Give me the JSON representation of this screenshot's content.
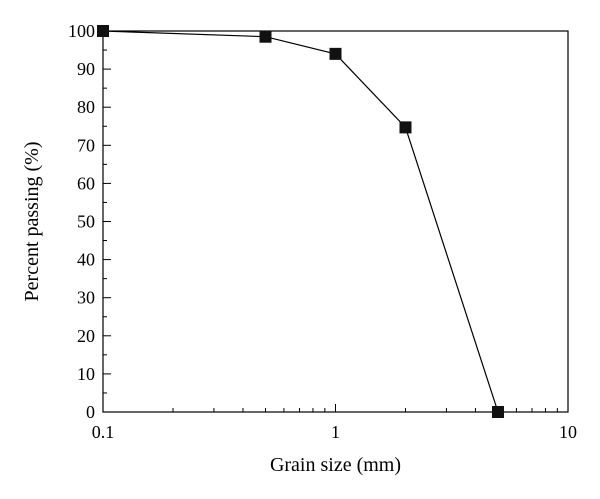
{
  "chart_data": {
    "type": "line",
    "xlabel": "Grain size (mm)",
    "ylabel": "Percent passing (%)",
    "x_scale": "log",
    "xlim": [
      0.1,
      10
    ],
    "ylim": [
      0,
      100
    ],
    "x_ticks": [
      {
        "value": 0.1,
        "label": "0.1"
      },
      {
        "value": 1,
        "label": "1"
      },
      {
        "value": 10,
        "label": "10"
      }
    ],
    "y_ticks": [
      0,
      10,
      20,
      30,
      40,
      50,
      60,
      70,
      80,
      90,
      100
    ],
    "grid": false,
    "marker": "square",
    "series": [
      {
        "x": [
          0.1,
          0.5,
          1,
          2,
          5
        ],
        "y": [
          100,
          98.5,
          94,
          74.7,
          0
        ]
      }
    ]
  }
}
